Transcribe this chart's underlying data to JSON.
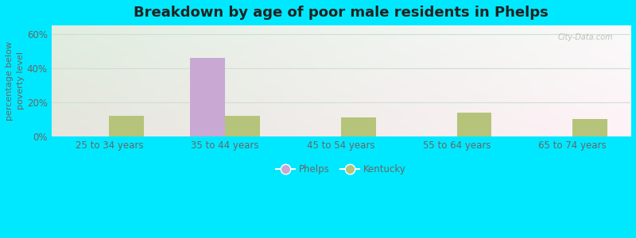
{
  "title": "Breakdown by age of poor male residents in Phelps",
  "categories": [
    "25 to 34 years",
    "35 to 44 years",
    "45 to 54 years",
    "55 to 64 years",
    "65 to 74 years"
  ],
  "phelps_values": [
    0,
    46,
    0,
    0,
    0
  ],
  "kentucky_values": [
    12,
    12,
    11,
    14,
    10
  ],
  "phelps_color": "#c9a8d4",
  "kentucky_color": "#b5c47a",
  "ylabel": "percentage below\npoverty level",
  "ylim": [
    0,
    65
  ],
  "yticks": [
    0,
    20,
    40,
    60
  ],
  "ytick_labels": [
    "0%",
    "20%",
    "40%",
    "60%"
  ],
  "outer_background": "#00e8ff",
  "bar_width": 0.3,
  "title_fontsize": 13,
  "axis_label_fontsize": 8,
  "tick_fontsize": 8.5,
  "legend_labels": [
    "Phelps",
    "Kentucky"
  ],
  "watermark": "City-Data.com",
  "grid_color": "#d0dfd0",
  "text_color": "#666666"
}
